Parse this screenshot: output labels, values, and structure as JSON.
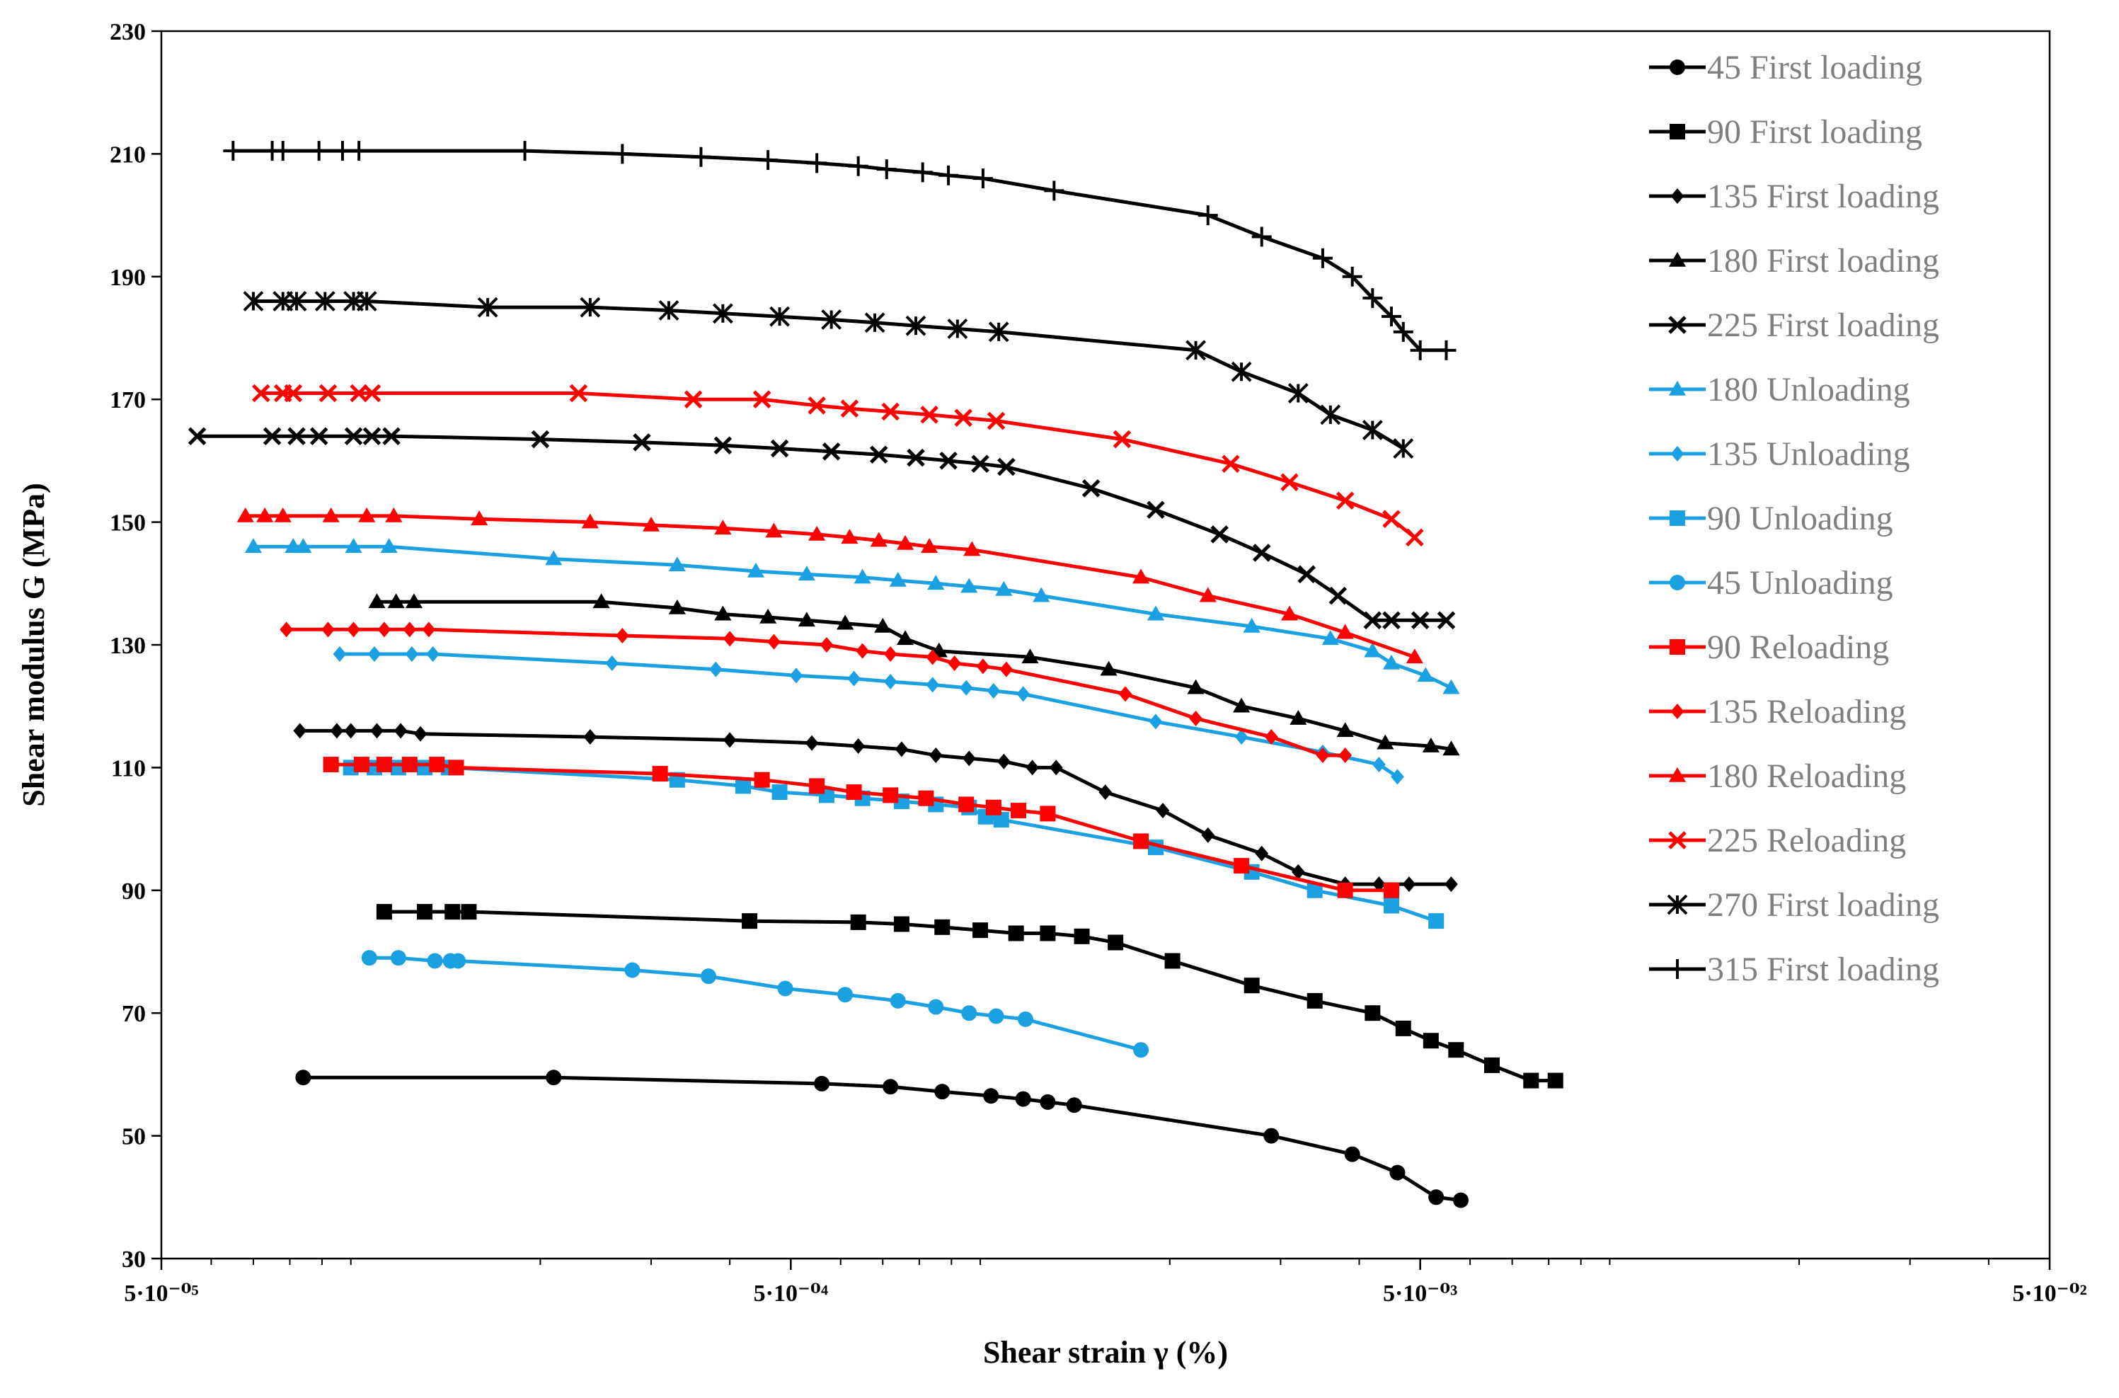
{
  "chart_data": {
    "type": "line",
    "xlabel": "Shear strain γ (%)",
    "ylabel": "Shear modulus G (MPa)",
    "x_scale": "log",
    "xlim": [
      5e-05,
      0.05
    ],
    "ylim": [
      30,
      230
    ],
    "x_ticks": [
      5e-05,
      0.0005,
      0.005,
      0.05
    ],
    "x_tick_labels": [
      "5·10⁻⁰⁵",
      "5·10⁻⁰⁴",
      "5·10⁻⁰³",
      "5·10⁻⁰²"
    ],
    "y_ticks": [
      30,
      50,
      70,
      90,
      110,
      130,
      150,
      170,
      190,
      210,
      230
    ],
    "y_tick_labels": [
      "30",
      "50",
      "70",
      "90",
      "110",
      "130",
      "150",
      "170",
      "190",
      "210",
      "230"
    ],
    "grid": false,
    "legend_position": "top-right",
    "series": [
      {
        "name": "45 First loading",
        "color": "#000000",
        "marker": "circle",
        "x": [
          8.4e-05,
          0.00021,
          0.00056,
          0.00072,
          0.00087,
          0.00104,
          0.00117,
          0.00128,
          0.00141,
          0.0029,
          0.0039,
          0.0046,
          0.0053,
          0.0058
        ],
        "y": [
          59.5,
          59.5,
          58.5,
          58.0,
          57.2,
          56.5,
          56.0,
          55.5,
          55.0,
          50.0,
          47.0,
          44.0,
          40.0,
          39.5
        ]
      },
      {
        "name": "90 First loading",
        "color": "#000000",
        "marker": "square",
        "x": [
          0.000113,
          0.000131,
          0.000145,
          0.000154,
          0.00043,
          0.00064,
          0.00075,
          0.00087,
          0.001,
          0.00114,
          0.00128,
          0.00145,
          0.00164,
          0.00202,
          0.0027,
          0.0034,
          0.0042,
          0.0047,
          0.0052,
          0.0057,
          0.0065,
          0.0075,
          0.0082
        ],
        "y": [
          86.5,
          86.5,
          86.5,
          86.5,
          85.0,
          84.8,
          84.5,
          84.0,
          83.5,
          83.0,
          83.0,
          82.5,
          81.5,
          78.5,
          74.5,
          72.0,
          70.0,
          67.5,
          65.5,
          64.0,
          61.5,
          59.0,
          59.0
        ]
      },
      {
        "name": "135 First loading",
        "color": "#000000",
        "marker": "diamond",
        "x": [
          8.3e-05,
          9.5e-05,
          0.0001,
          0.00011,
          0.00012,
          0.000129,
          0.00024,
          0.0004,
          0.00054,
          0.00064,
          0.00075,
          0.00085,
          0.00096,
          0.00109,
          0.00121,
          0.00132,
          0.00158,
          0.00195,
          0.0023,
          0.0028,
          0.0032,
          0.0038,
          0.0043,
          0.0048,
          0.0056
        ],
        "y": [
          116,
          116,
          116,
          116,
          116,
          115.5,
          115,
          114.5,
          114,
          113.5,
          113,
          112,
          111.5,
          111,
          110,
          110,
          106,
          103,
          99,
          96,
          93,
          91,
          91,
          91,
          91
        ]
      },
      {
        "name": "180 First loading",
        "color": "#000000",
        "marker": "triangle",
        "x": [
          0.00011,
          0.000118,
          0.000126,
          0.00025,
          0.00033,
          0.00039,
          0.00046,
          0.00053,
          0.00061,
          0.0007,
          0.00076,
          0.00086,
          0.0012,
          0.0016,
          0.0022,
          0.0026,
          0.0032,
          0.0038,
          0.0044,
          0.0052,
          0.0056
        ],
        "y": [
          137,
          137,
          137,
          137,
          136,
          135,
          134.5,
          134,
          133.5,
          133,
          131,
          129,
          128,
          126,
          123,
          120,
          118,
          116,
          114,
          113.5,
          113
        ]
      },
      {
        "name": "225 First loading",
        "color": "#000000",
        "marker": "x",
        "x": [
          5.7e-05,
          7.5e-05,
          8.2e-05,
          8.9e-05,
          0.000101,
          0.000108,
          0.000116,
          0.0002,
          0.00029,
          0.00039,
          0.00048,
          0.00058,
          0.00069,
          0.00079,
          0.00089,
          0.001,
          0.0011,
          0.0015,
          0.0019,
          0.0024,
          0.0028,
          0.0033,
          0.0037,
          0.0042,
          0.0045,
          0.005,
          0.0055
        ],
        "y": [
          164,
          164,
          164,
          164,
          164,
          164,
          164,
          163.5,
          163,
          162.5,
          162,
          161.5,
          161,
          160.5,
          160,
          159.5,
          159,
          155.5,
          152,
          148,
          145,
          141.5,
          138,
          134,
          134,
          134,
          134
        ]
      },
      {
        "name": "180 Unloading",
        "color": "#1BA1E2",
        "marker": "triangle",
        "x": [
          7e-05,
          8.1e-05,
          8.4e-05,
          0.000101,
          0.000115,
          0.00021,
          0.00033,
          0.00044,
          0.00053,
          0.00065,
          0.00074,
          0.00085,
          0.00096,
          0.00109,
          0.00125,
          0.0019,
          0.0027,
          0.0036,
          0.0042,
          0.0045,
          0.0051,
          0.0056
        ],
        "y": [
          146,
          146,
          146,
          146,
          146,
          144,
          143,
          142,
          141.5,
          141,
          140.5,
          140,
          139.5,
          139,
          138,
          135,
          133,
          131,
          129,
          127,
          125,
          123
        ]
      },
      {
        "name": "135 Unloading",
        "color": "#1BA1E2",
        "marker": "diamond",
        "x": [
          9.6e-05,
          0.000109,
          0.000125,
          0.000135,
          0.00026,
          0.00038,
          0.00051,
          0.00063,
          0.00072,
          0.00084,
          0.00095,
          0.00105,
          0.00117,
          0.0019,
          0.0026,
          0.0035,
          0.0043,
          0.0046
        ],
        "y": [
          128.5,
          128.5,
          128.5,
          128.5,
          127,
          126,
          125,
          124.5,
          124,
          123.5,
          123,
          122.5,
          122,
          117.5,
          115,
          112.5,
          110.5,
          108.5
        ]
      },
      {
        "name": "90 Unloading",
        "color": "#1BA1E2",
        "marker": "square",
        "x": [
          0.0001,
          0.000109,
          0.000119,
          0.000131,
          0.000143,
          0.00033,
          0.00042,
          0.00048,
          0.00057,
          0.00065,
          0.00075,
          0.00085,
          0.00096,
          0.00102,
          0.00108,
          0.0019,
          0.0027,
          0.0034,
          0.0045,
          0.0053
        ],
        "y": [
          110,
          110,
          110,
          110,
          110,
          108,
          107,
          106,
          105.5,
          105,
          104.5,
          104,
          103.5,
          102,
          101.5,
          97,
          93,
          90,
          87.5,
          85
        ]
      },
      {
        "name": "45 Unloading",
        "color": "#1BA1E2",
        "marker": "circle",
        "x": [
          0.000107,
          0.000119,
          0.000136,
          0.000144,
          0.000148,
          0.00028,
          0.00037,
          0.00049,
          0.00061,
          0.00074,
          0.00085,
          0.00096,
          0.00106,
          0.00118,
          0.0018
        ],
        "y": [
          79,
          79,
          78.5,
          78.5,
          78.5,
          77,
          76,
          74,
          73,
          72,
          71,
          70,
          69.5,
          69,
          64
        ]
      },
      {
        "name": "90 Reloading",
        "color": "#FF0000",
        "marker": "square",
        "x": [
          9.3e-05,
          0.000104,
          0.000113,
          0.000124,
          0.000137,
          0.000147,
          0.00031,
          0.00045,
          0.00055,
          0.00063,
          0.00072,
          0.00082,
          0.00095,
          0.00105,
          0.00115,
          0.00128,
          0.0018,
          0.0026,
          0.0038,
          0.0045
        ],
        "y": [
          110.5,
          110.5,
          110.5,
          110.5,
          110.5,
          110,
          109,
          108,
          107,
          106,
          105.5,
          105,
          104,
          103.5,
          103,
          102.5,
          98,
          94,
          90,
          90
        ]
      },
      {
        "name": "135 Reloading",
        "color": "#FF0000",
        "marker": "diamond",
        "x": [
          7.9e-05,
          9.2e-05,
          0.000101,
          0.000113,
          0.000124,
          0.000133,
          0.00027,
          0.0004,
          0.00047,
          0.00057,
          0.00065,
          0.00072,
          0.00084,
          0.00091,
          0.00101,
          0.0011,
          0.0017,
          0.0022,
          0.0029,
          0.0035,
          0.0038
        ],
        "y": [
          132.5,
          132.5,
          132.5,
          132.5,
          132.5,
          132.5,
          131.5,
          131,
          130.5,
          130,
          129,
          128.5,
          128,
          127,
          126.5,
          126,
          122,
          118,
          115,
          112,
          112
        ]
      },
      {
        "name": "180 Reloading",
        "color": "#FF0000",
        "marker": "triangle",
        "x": [
          6.8e-05,
          7.3e-05,
          7.8e-05,
          9.3e-05,
          0.000106,
          0.000117,
          0.00016,
          0.00024,
          0.0003,
          0.00039,
          0.00047,
          0.00055,
          0.00062,
          0.00069,
          0.00076,
          0.00083,
          0.00097,
          0.0018,
          0.0023,
          0.0031,
          0.0038,
          0.0049
        ],
        "y": [
          151,
          151,
          151,
          151,
          151,
          151,
          150.5,
          150,
          149.5,
          149,
          148.5,
          148,
          147.5,
          147,
          146.5,
          146,
          145.5,
          141,
          138,
          135,
          132,
          128
        ]
      },
      {
        "name": "225 Reloading",
        "color": "#FF0000",
        "marker": "x",
        "x": [
          7.2e-05,
          7.8e-05,
          8.1e-05,
          9.2e-05,
          0.000103,
          0.000108,
          0.00023,
          0.00035,
          0.00045,
          0.00055,
          0.00062,
          0.00072,
          0.00083,
          0.00094,
          0.00106,
          0.00168,
          0.0025,
          0.0031,
          0.0038,
          0.0045,
          0.0049
        ],
        "y": [
          171,
          171,
          171,
          171,
          171,
          171,
          171,
          170,
          170,
          169,
          168.5,
          168,
          167.5,
          167,
          166.5,
          163.5,
          159.5,
          156.5,
          153.5,
          150.5,
          147.5
        ]
      },
      {
        "name": "270 First loading",
        "color": "#000000",
        "marker": "asterisk",
        "x": [
          7e-05,
          7.8e-05,
          8.2e-05,
          9.1e-05,
          0.000101,
          0.000106,
          0.000165,
          0.00024,
          0.00032,
          0.00039,
          0.00048,
          0.00058,
          0.00068,
          0.00079,
          0.00092,
          0.00107,
          0.0022,
          0.0026,
          0.0032,
          0.0036,
          0.0042,
          0.0047
        ],
        "y": [
          186,
          186,
          186,
          186,
          186,
          186,
          185,
          185,
          184.5,
          184,
          183.5,
          183,
          182.5,
          182,
          181.5,
          181,
          178,
          174.5,
          171,
          167.5,
          165,
          162
        ]
      },
      {
        "name": "315 First loading",
        "color": "#000000",
        "marker": "plus",
        "x": [
          6.5e-05,
          7.5e-05,
          7.8e-05,
          8.9e-05,
          9.7e-05,
          0.000103,
          0.000189,
          0.00027,
          0.00036,
          0.00046,
          0.00055,
          0.00064,
          0.00071,
          0.00081,
          0.00089,
          0.00101,
          0.00131,
          0.0023,
          0.0028,
          0.0035,
          0.0039,
          0.0042,
          0.0045,
          0.0047,
          0.005,
          0.0055
        ],
        "y": [
          210.5,
          210.5,
          210.5,
          210.5,
          210.5,
          210.5,
          210.5,
          210,
          209.5,
          209,
          208.5,
          208,
          207.5,
          207,
          206.5,
          206,
          204,
          200,
          196.5,
          193,
          190,
          186.5,
          183.5,
          181,
          178,
          178
        ]
      }
    ]
  }
}
